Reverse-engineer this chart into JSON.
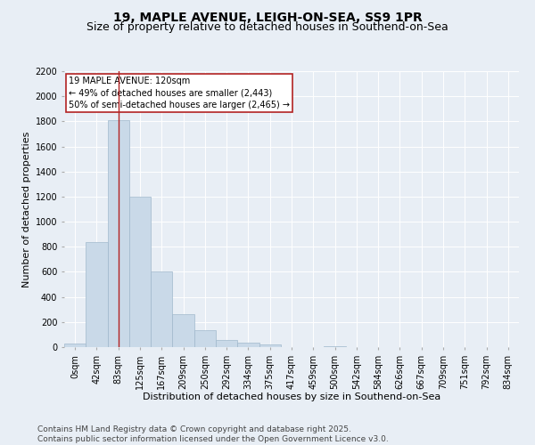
{
  "title": "19, MAPLE AVENUE, LEIGH-ON-SEA, SS9 1PR",
  "subtitle": "Size of property relative to detached houses in Southend-on-Sea",
  "xlabel": "Distribution of detached houses by size in Southend-on-Sea",
  "ylabel": "Number of detached properties",
  "bar_labels": [
    "0sqm",
    "42sqm",
    "83sqm",
    "125sqm",
    "167sqm",
    "209sqm",
    "250sqm",
    "292sqm",
    "334sqm",
    "375sqm",
    "417sqm",
    "459sqm",
    "500sqm",
    "542sqm",
    "584sqm",
    "626sqm",
    "667sqm",
    "709sqm",
    "751sqm",
    "792sqm",
    "834sqm"
  ],
  "bar_values": [
    25,
    840,
    1810,
    1200,
    600,
    260,
    135,
    55,
    35,
    20,
    0,
    0,
    10,
    0,
    0,
    0,
    0,
    0,
    0,
    0,
    0
  ],
  "bar_color": "#c9d9e8",
  "bar_edge_color": "#a0b8cc",
  "ylim": [
    0,
    2200
  ],
  "yticks": [
    0,
    200,
    400,
    600,
    800,
    1000,
    1200,
    1400,
    1600,
    1800,
    2000,
    2200
  ],
  "vline_x": 2.0,
  "vline_color": "#b22222",
  "annotation_text": "19 MAPLE AVENUE: 120sqm\n← 49% of detached houses are smaller (2,443)\n50% of semi-detached houses are larger (2,465) →",
  "bg_color": "#e8eef5",
  "plot_bg_color": "#e8eef5",
  "footer_text": "Contains HM Land Registry data © Crown copyright and database right 2025.\nContains public sector information licensed under the Open Government Licence v3.0.",
  "title_fontsize": 10,
  "subtitle_fontsize": 9,
  "label_fontsize": 8,
  "tick_fontsize": 7,
  "footer_fontsize": 6.5,
  "annot_fontsize": 7
}
